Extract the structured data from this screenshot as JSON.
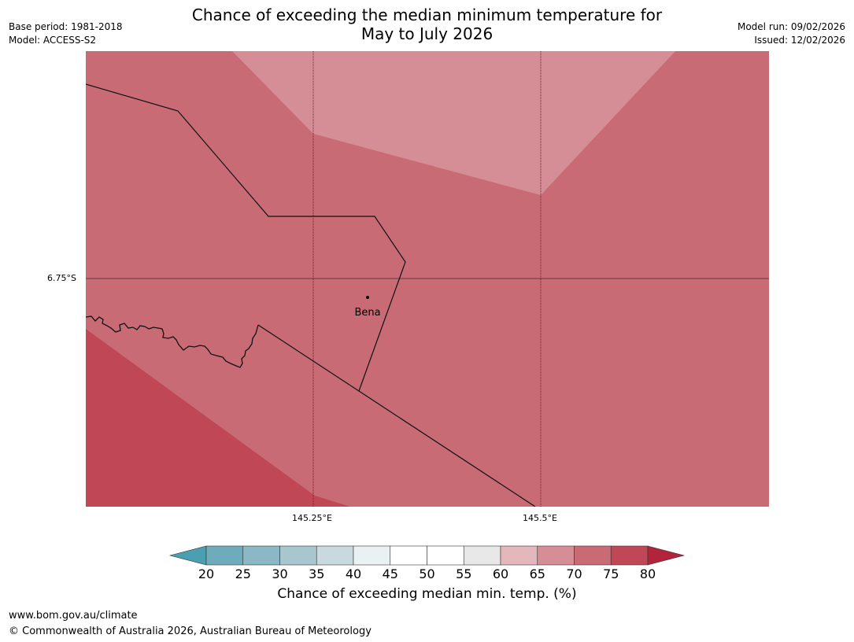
{
  "header": {
    "title_line1": "Chance of exceeding the median minimum temperature for",
    "title_line2": "May to July 2026",
    "base_period": "Base period: 1981-2018",
    "model": "Model: ACCESS-S2",
    "model_run": "Model run: 09/02/2026",
    "issued": "Issued: 12/02/2026"
  },
  "map": {
    "place_label": "Bena",
    "lat_label": "6.75°S",
    "lon_labels": [
      "145.25°E",
      "145.5°E"
    ]
  },
  "colorbar": {
    "ticks": [
      "20",
      "25",
      "30",
      "35",
      "40",
      "45",
      "50",
      "55",
      "60",
      "65",
      "70",
      "75",
      "80"
    ],
    "colors": [
      "#4a9fb0",
      "#6eacbb",
      "#8bb8c4",
      "#a7c6cd",
      "#c9dade",
      "#eaf1f3",
      "#ffffff",
      "#ffffff",
      "#e8e8e8",
      "#e3b8bc",
      "#d68e96",
      "#c86b75",
      "#c04856",
      "#b22439"
    ],
    "caption": "Chance of exceeding median min. temp. (%)"
  },
  "footer": {
    "url": "www.bom.gov.au/climate",
    "copyright": "© Commonwealth of Australia 2026, Australian Bureau of Meteorology"
  }
}
